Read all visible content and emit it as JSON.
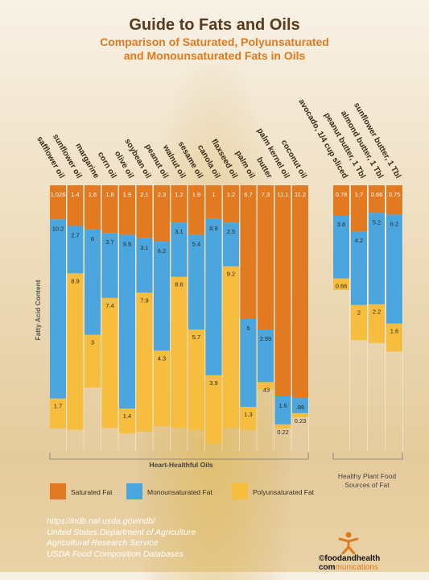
{
  "title": "Guide to Fats and Oils",
  "subtitle_line1": "Comparison of Saturated, Polyunsaturated",
  "subtitle_line2": "and Monounsaturated Fats in Oils",
  "colors": {
    "saturated": "#e27a22",
    "mono": "#4aa6dd",
    "poly": "#f6bd3e",
    "title": "#5a3a1c",
    "subtitle": "#e07a1f"
  },
  "source_lines": [
    "https://ndb.nal.usda.gov/ndb/",
    "United States Department of Agriculture",
    "Agricultural Research Service",
    "USDA Food Composition Databases"
  ],
  "brand": {
    "main": "©foodandhealth com",
    "accent": "munications"
  },
  "chart_data": {
    "type": "bar",
    "stacked": true,
    "ylabel": "Fatty Acid Content",
    "group_labels": [
      "Heart-Healthful Oils",
      "Healthy Plant Food",
      "Sources of Fat"
    ],
    "legend": [
      "Saturated Fat",
      "Monounsaturated Fat",
      "Polyunsaturated Fat"
    ],
    "legend_position": "bottom",
    "series_order": [
      "saturated",
      "mono",
      "poly"
    ],
    "categories": [
      "safflower oil",
      "sunflower oil",
      "margarine",
      "corn oil",
      "olive oil",
      "soybean oil",
      "peanut oil",
      "walnut oil",
      "sesame oil",
      "canola oil",
      "flaxseed oil",
      "palm oil",
      "butter",
      "palm kernel oil",
      "coconut oil",
      "avocado, 1/4 cup sliced",
      "peanut butter, 1 Tbl",
      "almond butter, 1 Tbl",
      "sunflower butter, 1 Tbl"
    ],
    "saturated": [
      1.026,
      1.4,
      1.6,
      1.8,
      1.9,
      2.1,
      2.3,
      1.2,
      1.9,
      1,
      1.2,
      6.7,
      7.3,
      11.1,
      11.2,
      0.78,
      1.7,
      0.66,
      0.75
    ],
    "mono": [
      10.2,
      2.7,
      6,
      3.7,
      9.9,
      3.1,
      6.2,
      3.1,
      5.4,
      8.9,
      2.5,
      5,
      2.99,
      1.6,
      0.86,
      3.6,
      4.2,
      5.2,
      6.2
    ],
    "poly": [
      1.7,
      8.9,
      3,
      7.4,
      1.4,
      7.9,
      4.3,
      8.6,
      5.7,
      3.9,
      9.2,
      1.3,
      0.43,
      0.22,
      0.23,
      0.66,
      2,
      2.2,
      1.6
    ],
    "saturated_labels": [
      "1.026",
      "1.4",
      "1.6",
      "1.8",
      "1.9",
      "2.1",
      "2.3",
      "1.2",
      "1.9",
      "1",
      "1.2",
      "6.7",
      "7.3",
      "11.1",
      "11.2",
      "0.78",
      "1.7",
      "0.66",
      "0.75"
    ],
    "mono_labels": [
      "10.2",
      "2.7",
      "6",
      "3.7",
      "9.9",
      "3.1",
      "6.2",
      "3.1",
      "5.4",
      "8.9",
      "2.5",
      "5",
      "2.99",
      "1.6",
      ".86",
      "3.6",
      "4.2",
      "5.2",
      "6.2"
    ],
    "poly_labels": [
      "1.7",
      "8.9",
      "3",
      "7.4",
      "1.4",
      "7.9",
      "4.3",
      "8.6",
      "5.7",
      "3.9",
      "9.2",
      "1.3",
      ".43",
      "0.22",
      "0.23",
      "0.66",
      "2",
      "2.2",
      "1.6"
    ]
  }
}
